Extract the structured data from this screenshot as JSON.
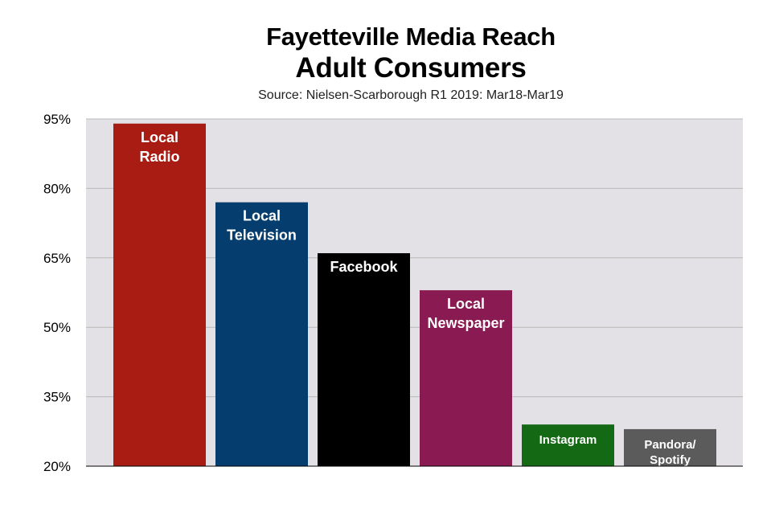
{
  "chart_data": {
    "type": "bar",
    "title": "Fayetteville Media Reach",
    "subtitle": "Adult Consumers",
    "source": "Source: Nielsen-Scarborough R1 2019: Mar18-Mar19",
    "ylim": [
      20,
      95
    ],
    "yticks": [
      "95%",
      "80%",
      "65%",
      "50%",
      "35%",
      "20%"
    ],
    "ytick_values": [
      95,
      80,
      65,
      50,
      35,
      20
    ],
    "grid": true,
    "categories": [
      {
        "label_lines": [
          "Local",
          "Radio"
        ],
        "value": 94,
        "color": "#a81c14"
      },
      {
        "label_lines": [
          "Local",
          "Television"
        ],
        "value": 77,
        "color": "#053e6e"
      },
      {
        "label_lines": [
          "Facebook"
        ],
        "value": 66,
        "color": "#000000"
      },
      {
        "label_lines": [
          "Local",
          "Newspaper"
        ],
        "value": 58,
        "color": "#8a1a52"
      },
      {
        "label_lines": [
          "Instagram"
        ],
        "value": 29,
        "color": "#136914"
      },
      {
        "label_lines": [
          "Pandora/",
          "Spotify"
        ],
        "value": 28,
        "color": "#5b5b5b"
      }
    ]
  },
  "colors": {
    "plot_background": "#e3e1e5",
    "gridline": "#b9b9b9",
    "axis_line": "#000000"
  }
}
